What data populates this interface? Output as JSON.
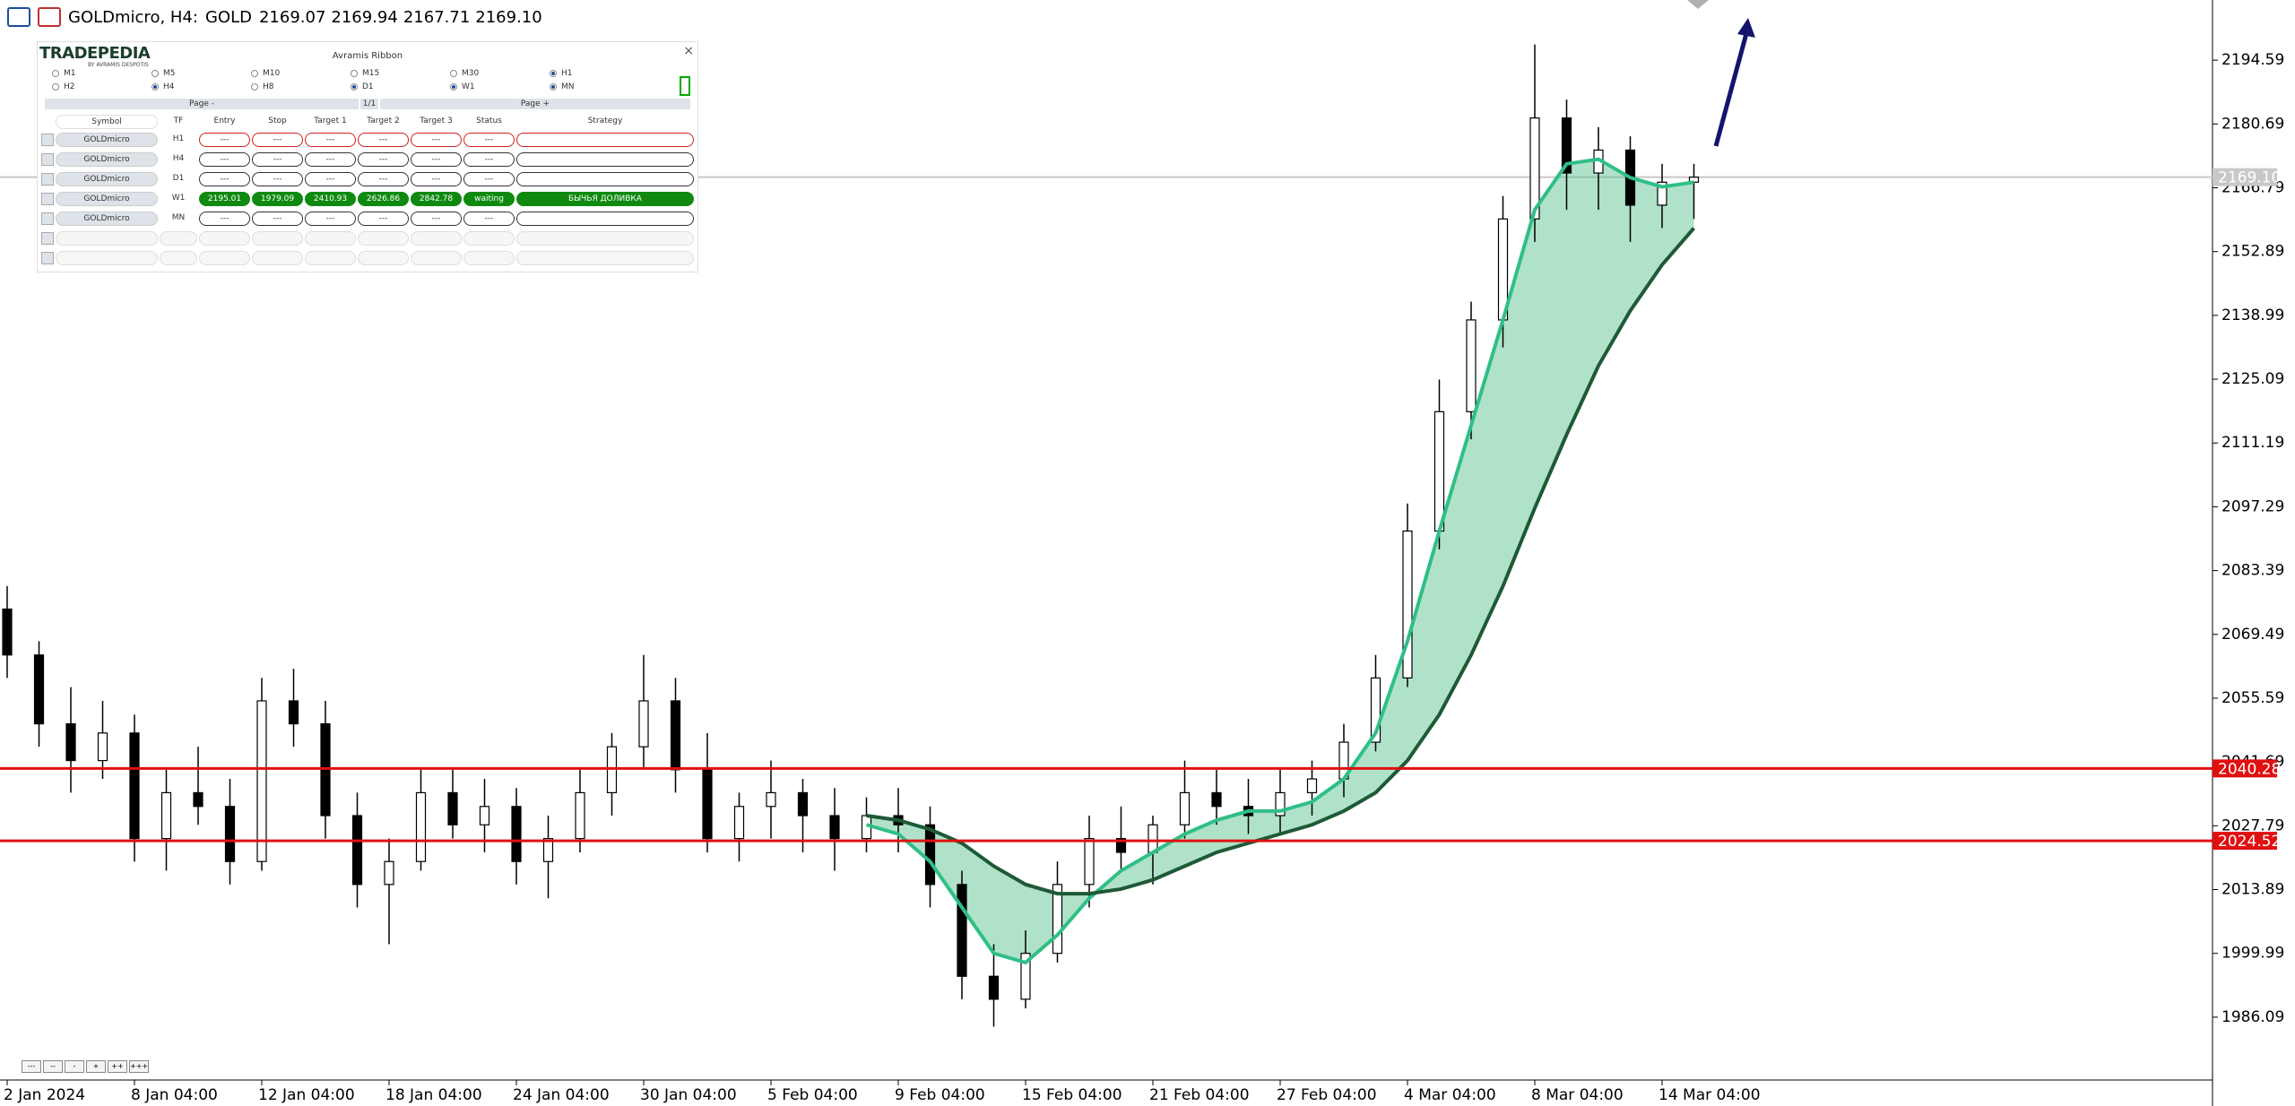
{
  "header": {
    "symbol": "GOLDmicro, H4:",
    "name": "GOLD",
    "ohlc": [
      "2169.07",
      "2169.94",
      "2167.71",
      "2169.10"
    ]
  },
  "panel": {
    "brand": "TRADEPEDIA",
    "byline": "BY AVRAMIS DESPOTIS",
    "title": "Avramis Ribbon",
    "close": "×",
    "timeframes": [
      {
        "label": "M1",
        "checked": false
      },
      {
        "label": "M5",
        "checked": false
      },
      {
        "label": "M10",
        "checked": false
      },
      {
        "label": "M15",
        "checked": false
      },
      {
        "label": "M30",
        "checked": false
      },
      {
        "label": "H1",
        "checked": true
      },
      {
        "label": "H2",
        "checked": false
      },
      {
        "label": "H4",
        "checked": true
      },
      {
        "label": "H8",
        "checked": false
      },
      {
        "label": "D1",
        "checked": true
      },
      {
        "label": "W1",
        "checked": true
      },
      {
        "label": "MN",
        "checked": true
      }
    ],
    "pager": [
      "Page -",
      "1/1",
      "Page +"
    ],
    "headers": [
      "Symbol",
      "TF",
      "Entry",
      "Stop",
      "Target 1",
      "Target 2",
      "Target 3",
      "Status",
      "Strategy"
    ],
    "rows": [
      [
        "GOLDmicro",
        "H1",
        "---",
        "---",
        "---",
        "---",
        "---",
        "---",
        ""
      ],
      [
        "GOLDmicro",
        "H4",
        "---",
        "---",
        "---",
        "---",
        "---",
        "---",
        ""
      ],
      [
        "GOLDmicro",
        "D1",
        "---",
        "---",
        "---",
        "---",
        "---",
        "---",
        ""
      ],
      [
        "GOLDmicro",
        "W1",
        "2195.01",
        "1979.09",
        "2410.93",
        "2626.86",
        "2842.78",
        "waiting",
        "БЫЧЬЯ ДОЛИВКА"
      ],
      [
        "GOLDmicro",
        "MN",
        "---",
        "---",
        "---",
        "---",
        "---",
        "---",
        ""
      ]
    ],
    "active_row": 3
  },
  "zoom_buttons": [
    "---",
    "--",
    "-",
    "+",
    "++",
    "+++"
  ],
  "chart_data": {
    "type": "candlestick",
    "categories": [
      "2 Jan 2024",
      null,
      null,
      null,
      "8 Jan 04:00",
      null,
      null,
      null,
      "12 Jan 04:00",
      null,
      null,
      null,
      "18 Jan 04:00",
      null,
      null,
      null,
      "24 Jan 04:00",
      null,
      null,
      null,
      "30 Jan 04:00",
      null,
      null,
      null,
      "5 Feb 04:00",
      null,
      null,
      null,
      "9 Feb 04:00",
      null,
      null,
      null,
      "15 Feb 04:00",
      null,
      null,
      null,
      "21 Feb 04:00",
      null,
      null,
      null,
      "27 Feb 04:00",
      null,
      null,
      null,
      "4 Mar 04:00",
      null,
      null,
      null,
      "8 Mar 04:00",
      null,
      null,
      null,
      "14 Mar 04:00",
      null
    ],
    "open": [
      2075,
      2065,
      2050,
      2042,
      2048,
      2025,
      2035,
      2032,
      2020,
      2055,
      2050,
      2030,
      2015,
      2020,
      2035,
      2028,
      2032,
      2020,
      2025,
      2035,
      2045,
      2055,
      2040,
      2025,
      2032,
      2035,
      2030,
      2025,
      2030,
      2028,
      2015,
      1995,
      1990,
      2000,
      2015,
      2025,
      2022,
      2028,
      2035,
      2032,
      2030,
      2035,
      2038,
      2046,
      2060,
      2092,
      2118,
      2138,
      2160,
      2182,
      2170,
      2175,
      2163,
      2168
    ],
    "high": [
      2080,
      2068,
      2058,
      2055,
      2052,
      2040,
      2045,
      2038,
      2060,
      2062,
      2055,
      2035,
      2025,
      2040,
      2040,
      2038,
      2036,
      2030,
      2040,
      2048,
      2065,
      2060,
      2048,
      2035,
      2042,
      2038,
      2036,
      2034,
      2036,
      2032,
      2018,
      2002,
      2005,
      2020,
      2030,
      2032,
      2030,
      2042,
      2040,
      2038,
      2040,
      2042,
      2050,
      2065,
      2098,
      2125,
      2142,
      2165,
      2198,
      2186,
      2180,
      2178,
      2172,
      2172
    ],
    "low": [
      2060,
      2045,
      2035,
      2038,
      2020,
      2018,
      2028,
      2015,
      2018,
      2045,
      2025,
      2010,
      2002,
      2018,
      2025,
      2022,
      2015,
      2012,
      2022,
      2030,
      2040,
      2035,
      2022,
      2020,
      2025,
      2022,
      2018,
      2022,
      2022,
      2010,
      1990,
      1984,
      1988,
      1998,
      2010,
      2018,
      2015,
      2025,
      2028,
      2026,
      2026,
      2030,
      2034,
      2044,
      2058,
      2088,
      2112,
      2132,
      2155,
      2162,
      2162,
      2155,
      2158,
      2160
    ],
    "close": [
      2065,
      2050,
      2042,
      2048,
      2025,
      2035,
      2032,
      2020,
      2055,
      2050,
      2030,
      2015,
      2020,
      2035,
      2028,
      2032,
      2020,
      2025,
      2035,
      2045,
      2055,
      2040,
      2025,
      2032,
      2035,
      2030,
      2025,
      2030,
      2028,
      2015,
      1995,
      1990,
      2000,
      2015,
      2025,
      2022,
      2028,
      2035,
      2032,
      2030,
      2035,
      2038,
      2046,
      2060,
      2092,
      2118,
      2138,
      2160,
      2182,
      2170,
      2175,
      2163,
      2168,
      2169.1
    ],
    "ribbon": [
      {
        "color": "#2fbf86",
        "values": [
          null,
          null,
          null,
          null,
          null,
          null,
          null,
          null,
          null,
          null,
          null,
          null,
          null,
          null,
          null,
          null,
          null,
          null,
          null,
          null,
          null,
          null,
          null,
          null,
          null,
          null,
          null,
          2028,
          2026,
          2020,
          2010,
          2000,
          1998,
          2004,
          2012,
          2018,
          2022,
          2026,
          2029,
          2031,
          2031,
          2033,
          2038,
          2048,
          2068,
          2092,
          2115,
          2138,
          2162,
          2172,
          2173,
          2169,
          2167,
          2168
        ]
      },
      {
        "color": "#1d5a35",
        "values": [
          null,
          null,
          null,
          null,
          null,
          null,
          null,
          null,
          null,
          null,
          null,
          null,
          null,
          null,
          null,
          null,
          null,
          null,
          null,
          null,
          null,
          null,
          null,
          null,
          null,
          null,
          null,
          2030,
          2029,
          2027,
          2024,
          2019,
          2015,
          2013,
          2013,
          2014,
          2016,
          2019,
          2022,
          2024,
          2026,
          2028,
          2031,
          2035,
          2042,
          2052,
          2065,
          2080,
          2097,
          2113,
          2128,
          2140,
          2150,
          2158
        ]
      }
    ],
    "ylim": [
      1972.4,
      2207.7
    ],
    "yticks": [
      1986.09,
      1999.99,
      2013.89,
      2027.79,
      2041.69,
      2055.59,
      2069.49,
      2083.39,
      2097.29,
      2111.19,
      2125.09,
      2138.99,
      2152.89,
      2166.79,
      2180.69,
      2194.59
    ],
    "hlines": [
      {
        "value": 2040.28,
        "color": "#e01010"
      },
      {
        "value": 2024.52,
        "color": "#e01010"
      }
    ],
    "last_price": {
      "value": 2169.1,
      "label": "2169.10",
      "color": "#c8c8c8"
    }
  }
}
